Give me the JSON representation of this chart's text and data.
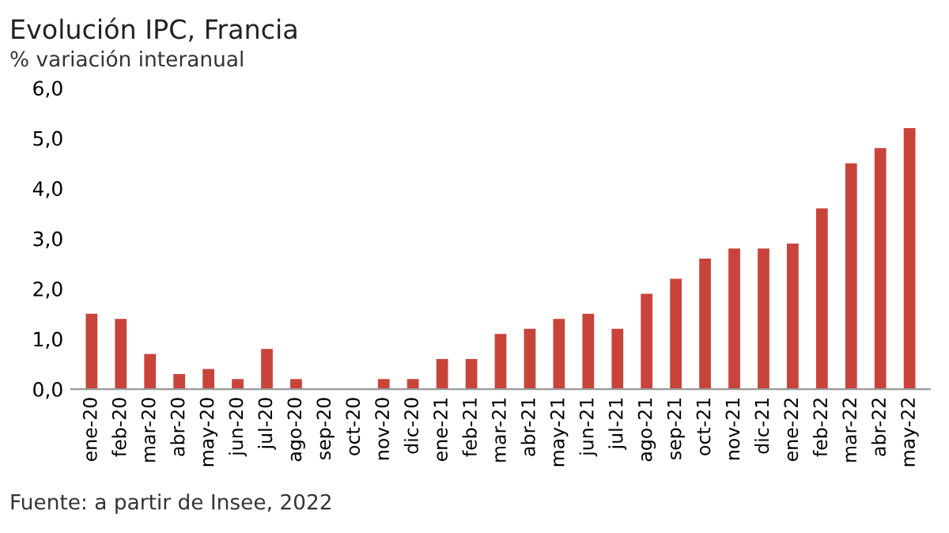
{
  "chart_data": {
    "type": "bar",
    "title": "Evolución IPC, Francia",
    "subtitle": "% variación interanual",
    "categories": [
      "ene-20",
      "feb-20",
      "mar-20",
      "abr-20",
      "may-20",
      "jun-20",
      "jul-20",
      "ago-20",
      "sep-20",
      "oct-20",
      "nov-20",
      "dic-20",
      "ene-21",
      "feb-21",
      "mar-21",
      "abr-21",
      "may-21",
      "jun-21",
      "jul-21",
      "ago-21",
      "sep-21",
      "oct-21",
      "nov-21",
      "dic-21",
      "ene-22",
      "feb-22",
      "mar-22",
      "abr-22",
      "may-22"
    ],
    "values": [
      1.5,
      1.4,
      0.7,
      0.3,
      0.4,
      0.2,
      0.8,
      0.2,
      0.0,
      0.0,
      0.2,
      0.2,
      0.6,
      0.6,
      1.1,
      1.2,
      1.4,
      1.5,
      1.2,
      1.9,
      2.2,
      2.6,
      2.8,
      2.8,
      2.9,
      3.6,
      4.5,
      4.8,
      5.2
    ],
    "color": "#c8443a",
    "ylim": [
      0,
      6
    ],
    "yticks": [
      {
        "value": 0,
        "label": "0,0"
      },
      {
        "value": 1,
        "label": "1,0"
      },
      {
        "value": 2,
        "label": "2,0"
      },
      {
        "value": 3,
        "label": "3,0"
      },
      {
        "value": 4,
        "label": "4,0"
      },
      {
        "value": 5,
        "label": "5,0"
      },
      {
        "value": 6,
        "label": "6,0"
      }
    ],
    "grid": false,
    "annotations": [
      "Fuente: a partir de Insee, 2022"
    ]
  }
}
